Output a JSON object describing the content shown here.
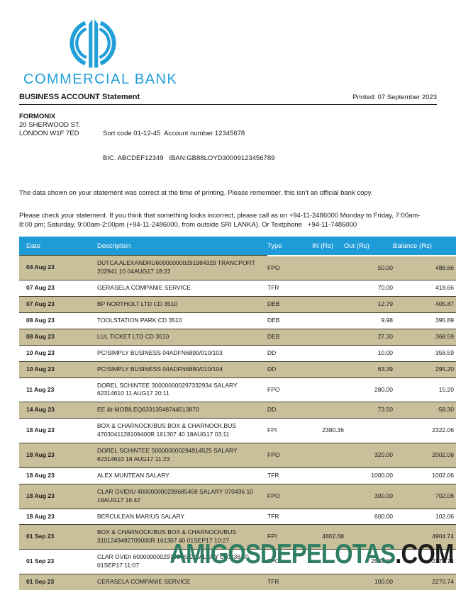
{
  "brand": {
    "logo_text": "COMMERCIAL BANK",
    "logo_color": "#219FD8"
  },
  "colors": {
    "accent_blue": "#1E9CD7",
    "row_tan": "#C9C09B",
    "row_border": "#45412F",
    "footer_green": "#2F7E61",
    "footer_dark": "#1E1E1C"
  },
  "header": {
    "statement_title": "BUSINESS ACCOUNT Statement",
    "printed": "Printed: 07 September 2023",
    "account_holder": {
      "name": "FORMONIX",
      "address_line1": "20 SHERWOOD ST.",
      "address_line2": "LONDON W1F 7ED"
    },
    "account_details": {
      "line1": "Sort code 01-12-45  Account number 12345678",
      "line2": "BIC. ABCDEF12349   IBAN:GB88LOYD30009123456789"
    },
    "disclaimer": "The data shown on your statement was correct at the time of printing. Please remember, this isn't an official bank copy.",
    "notice": "Please check your statement. If you think that something looks incorrect, please call as on +94-11-2486000 Monday to Friday, 7:00am-8:00 pm; Saturday, 9:00am-2:00pm (+94-11-2486000, from outside SRI LANKA). Or Textphone   +94-11-7486000"
  },
  "table": {
    "columns": [
      {
        "label": "Date",
        "key": "date"
      },
      {
        "label": "Description",
        "key": "description"
      },
      {
        "label": "Type",
        "key": "type"
      },
      {
        "label": "IN (Rs)",
        "key": "in"
      },
      {
        "label": "Out (Rs)",
        "key": "out"
      },
      {
        "label": "Balance (Rs)",
        "key": "balance"
      }
    ],
    "rows": [
      {
        "date": "04 Aug 23",
        "description": "DUTCA ALEXANDRU600000000291984329 TRANCPORT 202941 10 04AUG17 18:22",
        "type": "FPO",
        "in": "",
        "out": "50.00",
        "balance": "488.66"
      },
      {
        "date": "07 Aug 23",
        "description": "GERASELA COMPANIE SERVICE",
        "type": "TFR",
        "in": "",
        "out": "70.00",
        "balance": "418.66"
      },
      {
        "date": "07 Aug 23",
        "description": "BP NORTHOLT LTD CD 3510",
        "type": "DEB",
        "in": "",
        "out": "12.79",
        "balance": "405.87"
      },
      {
        "date": "08 Aug 23",
        "description": "TOOLSTATION PARK CD 3510",
        "type": "DEB",
        "in": "",
        "out": "9.98",
        "balance": "395.89"
      },
      {
        "date": "08 Aug 23",
        "description": "LUL TICKET LTD CD 3510",
        "type": "DEB",
        "in": "",
        "out": "27.30",
        "balance": "368.59"
      },
      {
        "date": "10 Aug 23",
        "description": "PC/SIMPLY BUSINESS 04ADFN6890/010/103",
        "type": "DD",
        "in": "",
        "out": "10.00",
        "balance": "358.59"
      },
      {
        "date": "10 Aug 23",
        "description": "PC/SIMPLY BUSINESS 04ADFN6890/010/104",
        "type": "DD",
        "in": "",
        "out": "63.39",
        "balance": "295.20"
      },
      {
        "date": "11 Aug 23",
        "description": "DOREL SCHINTEE 300000000297332934 SALARY 62314610 11 AUG17 20:11",
        "type": "FPO",
        "in": "",
        "out": "280.00",
        "balance": "15.20"
      },
      {
        "date": "14 Aug 23",
        "description": "EE &t-MOBILEQ63313548744513870",
        "type": "DD",
        "in": "",
        "out": "73.50",
        "balance": "-58.30"
      },
      {
        "date": "18 Aug 23",
        "description": "BOX & CHARNOCK/BUS BOX & CHARNOCK,BUS 4703041128109400R 161307 40 18AUG17 03:11",
        "type": "FPI",
        "in": "2380.36",
        "out": "",
        "balance": "2322.06"
      },
      {
        "date": "18 Aug 23",
        "description": "DOREL SCHINTEE 500000000294914525 SALARY 62314610 18 AUG17 11:23",
        "type": "FPO",
        "in": "",
        "out": "320.00",
        "balance": "2002.06"
      },
      {
        "date": "18 Aug 23",
        "description": "ALEX MUNTEAN SALARY",
        "type": "TFR",
        "in": "",
        "out": "1000.00",
        "balance": "1002.06"
      },
      {
        "date": "18 Aug 23",
        "description": "CLAR OVIDIU 400000000299685458 SALARY 070436 10 18AUG17 16:42",
        "type": "FPO",
        "in": "",
        "out": "300.00",
        "balance": "702.06"
      },
      {
        "date": "18 Aug 23",
        "description": "BERCULEAN MARIUS SALARY",
        "type": "TFR",
        "in": "",
        "out": "600.00",
        "balance": "102.06"
      },
      {
        "date": "01 Sep 23",
        "description": "BOX & CHARNOCK/BUS BOX & CHARNOCK/BUS 3101249492709000R 161307 40 01SEP17 10:27",
        "type": "FPI",
        "in": "4802.68",
        "out": "",
        "balance": "4904.74"
      },
      {
        "date": "01 Sep 23",
        "description": "CLAR OVIDI 600000000297937622 SALARY 070436 10 01SEP17 11:07",
        "type": "FPO",
        "in": "",
        "out": "2534.00",
        "balance": "2370.74"
      },
      {
        "date": "01 Sep 23",
        "description": "CERASELA COMPANIE SERVICE",
        "type": "TFR",
        "in": "",
        "out": "100.00",
        "balance": "2270.74"
      }
    ]
  },
  "footer": {
    "brand_primary": "AMIGOSDEPELOTAS",
    "brand_suffix": ".COM"
  }
}
